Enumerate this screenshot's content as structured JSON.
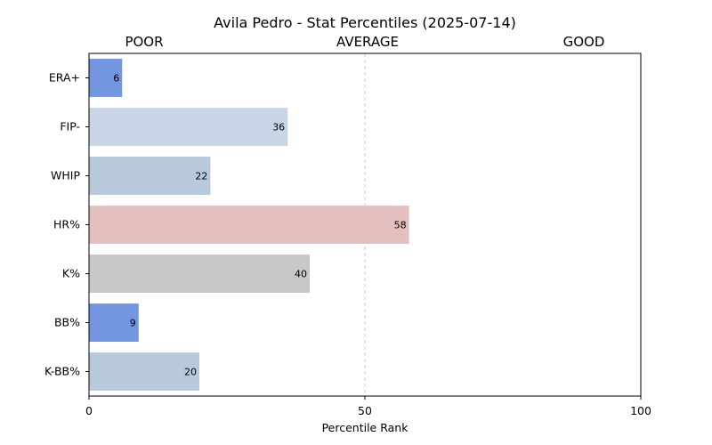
{
  "chart_data": {
    "type": "bar",
    "orientation": "horizontal",
    "title": "Avila Pedro - Stat Percentiles (2025-07-14)",
    "xlabel": "Percentile Rank",
    "ylabel": "",
    "xlim": [
      0,
      100
    ],
    "xticks": [
      "0",
      "50",
      "100"
    ],
    "zone_labels": [
      "POOR",
      "AVERAGE",
      "GOOD"
    ],
    "reference_line": 50,
    "grid": false,
    "categories": [
      "ERA+",
      "FIP-",
      "WHIP",
      "HR%",
      "K%",
      "BB%",
      "K-BB%"
    ],
    "values": [
      6,
      36,
      22,
      58,
      40,
      9,
      20
    ],
    "colors": [
      "#7495e0",
      "#c7d5e6",
      "#b8c9db",
      "#e4bfc0",
      "#c8c8c8",
      "#7495e0",
      "#b8c9db"
    ]
  }
}
